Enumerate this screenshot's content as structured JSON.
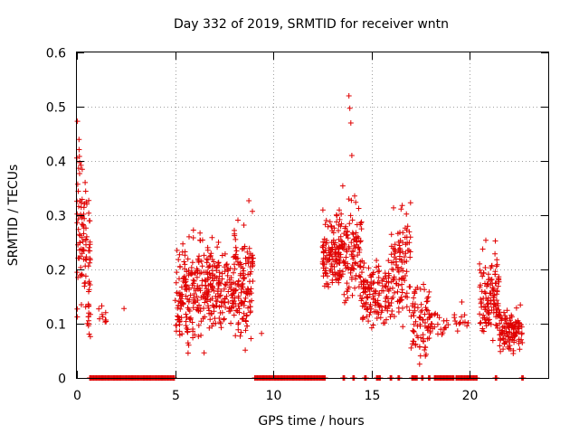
{
  "chart_data": {
    "type": "scatter",
    "title": "Day 332 of 2019, SRMTID for receiver wntn",
    "xlabel": "GPS time / hours",
    "ylabel": "SRMTID / TECUs",
    "xlim": [
      0,
      24
    ],
    "ylim": [
      0,
      0.6
    ],
    "xticks": [
      0,
      5,
      10,
      15,
      20
    ],
    "xtick_labels": [
      "0",
      "5",
      "10",
      "15",
      "20"
    ],
    "yticks": [
      0,
      0.1,
      0.2,
      0.3,
      0.4,
      0.5,
      0.6
    ],
    "ytick_labels": [
      "0",
      "0.1",
      "0.2",
      "0.3",
      "0.4",
      "0.5",
      "0.6"
    ],
    "grid": true,
    "marker": "+",
    "series_color": "#e00000",
    "series": [
      {
        "name": "SRMTID",
        "clusters": [
          {
            "x": [
              0.0,
              0.7
            ],
            "y": [
              0.05,
              0.48
            ],
            "n": 110,
            "shape": "decay"
          },
          {
            "x": [
              1.1,
              1.5
            ],
            "y": [
              0.09,
              0.16
            ],
            "n": 10
          },
          {
            "x": [
              5.0,
              6.5
            ],
            "y": [
              0.03,
              0.31
            ],
            "n": 170
          },
          {
            "x": [
              6.5,
              8.0
            ],
            "y": [
              0.07,
              0.29
            ],
            "n": 170
          },
          {
            "x": [
              8.0,
              9.0
            ],
            "y": [
              0.04,
              0.35
            ],
            "n": 130
          },
          {
            "x": [
              12.5,
              13.5
            ],
            "y": [
              0.14,
              0.35
            ],
            "n": 130
          },
          {
            "x": [
              13.5,
              14.5
            ],
            "y": [
              0.12,
              0.37
            ],
            "n": 110
          },
          {
            "x": [
              14.5,
              16.0
            ],
            "y": [
              0.08,
              0.24
            ],
            "n": 130
          },
          {
            "x": [
              16.0,
              17.0
            ],
            "y": [
              0.07,
              0.36
            ],
            "n": 110
          },
          {
            "x": [
              17.0,
              18.0
            ],
            "y": [
              0.02,
              0.21
            ],
            "n": 80
          },
          {
            "x": [
              18.0,
              19.0
            ],
            "y": [
              0.06,
              0.15
            ],
            "n": 20
          },
          {
            "x": [
              19.2,
              20.0
            ],
            "y": [
              0.08,
              0.14
            ],
            "n": 14
          },
          {
            "x": [
              20.5,
              21.5
            ],
            "y": [
              0.06,
              0.27
            ],
            "n": 120
          },
          {
            "x": [
              21.5,
              22.7
            ],
            "y": [
              0.04,
              0.15
            ],
            "n": 110
          }
        ],
        "points": [
          {
            "x": 2.4,
            "y": 0.128
          },
          {
            "x": 9.4,
            "y": 0.082
          },
          {
            "x": 13.85,
            "y": 0.52
          },
          {
            "x": 13.9,
            "y": 0.497
          },
          {
            "x": 13.95,
            "y": 0.47
          },
          {
            "x": 14.0,
            "y": 0.41
          },
          {
            "x": 18.7,
            "y": 0.09
          },
          {
            "x": 19.6,
            "y": 0.14
          }
        ],
        "zero_runs": [
          [
            0.65,
            5.0
          ],
          [
            9.05,
            12.65
          ],
          [
            13.55,
            13.65
          ],
          [
            14.05,
            14.15
          ],
          [
            14.65,
            14.75
          ],
          [
            15.25,
            15.45
          ],
          [
            15.95,
            16.05
          ],
          [
            16.35,
            16.45
          ],
          [
            17.05,
            17.35
          ],
          [
            17.55,
            17.65
          ],
          [
            17.9,
            18.0
          ],
          [
            18.2,
            19.2
          ],
          [
            19.3,
            20.4
          ],
          [
            21.3,
            21.4
          ],
          [
            22.65,
            22.75
          ]
        ]
      }
    ]
  }
}
